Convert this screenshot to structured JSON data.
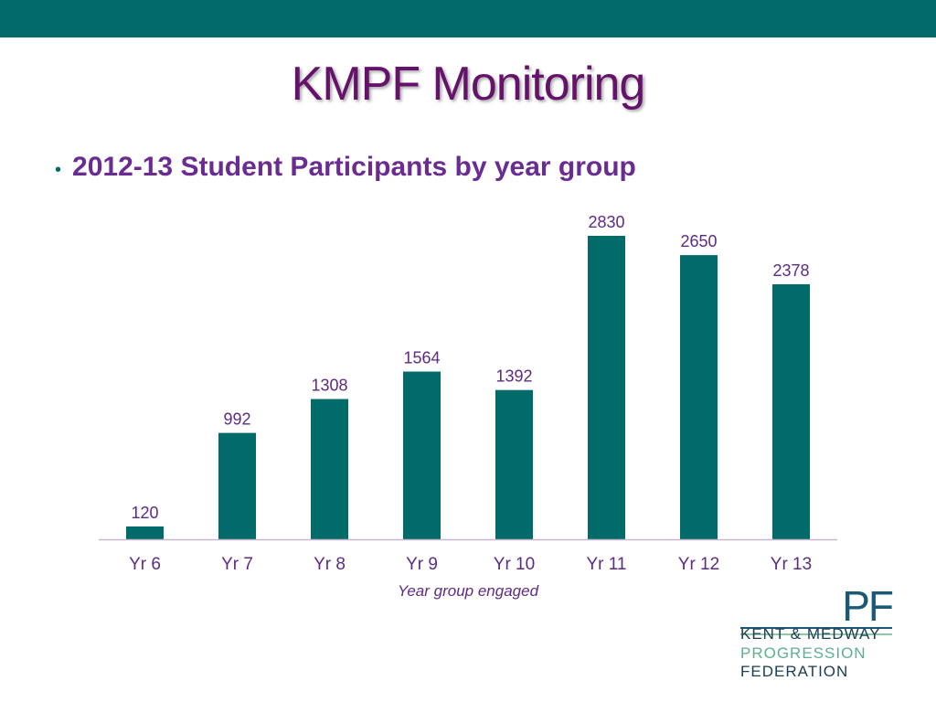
{
  "slide": {
    "title": "KMPF Monitoring",
    "bullet": "2012-13 Student Participants by year group",
    "bullet_marker": "•"
  },
  "logo": {
    "mark": "PF",
    "line1": "KENT & MEDWAY",
    "line2": "PROGRESSION",
    "line3": "FEDERATION"
  },
  "colors": {
    "band": "#006b68",
    "bar": "#006b68",
    "title": "#65126a",
    "text": "#5e2a84",
    "axis": "#c9b6cf"
  },
  "chart_data": {
    "type": "bar",
    "categories": [
      "Yr 6",
      "Yr 7",
      "Yr 8",
      "Yr 9",
      "Yr 10",
      "Yr 11",
      "Yr 12",
      "Yr 13"
    ],
    "values": [
      120,
      992,
      1308,
      1564,
      1392,
      2830,
      2650,
      2378
    ],
    "data_labels": [
      "120",
      "992",
      "1308",
      "1564",
      "1392",
      "2830",
      "2650",
      "2378"
    ],
    "xlabel": "Year group engaged",
    "ylim": [
      0,
      2830
    ],
    "grid": false,
    "legend": "none"
  }
}
